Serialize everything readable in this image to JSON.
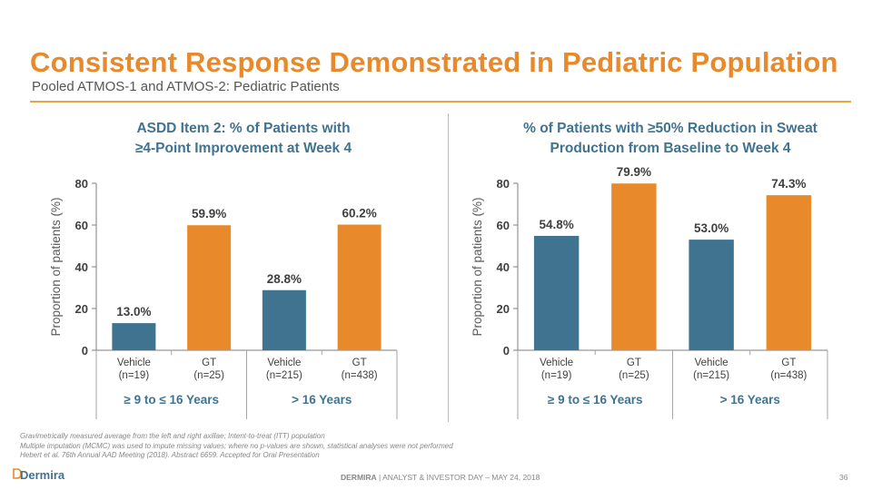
{
  "header": {
    "title": "Consistent Response Demonstrated in Pediatric Population",
    "subtitle": "Pooled ATMOS-1 and ATMOS-2: Pediatric Patients"
  },
  "colors": {
    "vehicle": "#3F738F",
    "gt": "#E8892B",
    "title": "#E8892B",
    "chart_title": "#3F7391"
  },
  "chart_data": [
    {
      "type": "bar",
      "title_lines": [
        "ASDD Item 2:  % of Patients with",
        "≥4-Point Improvement at Week 4"
      ],
      "ylabel": "Proportion of patients (%)",
      "ylim": [
        0,
        80
      ],
      "yticks": [
        "0",
        "20",
        "40",
        "60",
        "80"
      ],
      "categories": [
        {
          "name": "Vehicle",
          "n": "(n=19)",
          "group": 0,
          "kind": "vehicle",
          "value": 13.0,
          "label": "13.0%"
        },
        {
          "name": "GT",
          "n": "(n=25)",
          "group": 0,
          "kind": "gt",
          "value": 59.9,
          "label": "59.9%"
        },
        {
          "name": "Vehicle",
          "n": "(n=215)",
          "group": 1,
          "kind": "vehicle",
          "value": 28.8,
          "label": "28.8%"
        },
        {
          "name": "GT",
          "n": "(n=438)",
          "group": 1,
          "kind": "gt",
          "value": 60.2,
          "label": "60.2%"
        }
      ],
      "groups": [
        "≥ 9 to ≤ 16 Years",
        "> 16 Years"
      ],
      "grid": false
    },
    {
      "type": "bar",
      "title_lines": [
        "% of Patients with ≥50% Reduction in Sweat",
        "Production from Baseline to Week 4"
      ],
      "ylabel": "Proportion of patients (%)",
      "ylim": [
        0,
        80
      ],
      "yticks": [
        "0",
        "20",
        "40",
        "60",
        "80"
      ],
      "categories": [
        {
          "name": "Vehicle",
          "n": "(n=19)",
          "group": 0,
          "kind": "vehicle",
          "value": 54.8,
          "label": "54.8%"
        },
        {
          "name": "GT",
          "n": "(n=25)",
          "group": 0,
          "kind": "gt",
          "value": 79.9,
          "label": "79.9%"
        },
        {
          "name": "Vehicle",
          "n": "(n=215)",
          "group": 1,
          "kind": "vehicle",
          "value": 53.0,
          "label": "53.0%"
        },
        {
          "name": "GT",
          "n": "(n=438)",
          "group": 1,
          "kind": "gt",
          "value": 74.3,
          "label": "74.3%"
        }
      ],
      "groups": [
        "≥ 9 to ≤ 16 Years",
        "> 16 Years"
      ],
      "grid": false
    }
  ],
  "footnotes": [
    "Gravimetrically measured average from the left and right axillae; Intent-to-treat (ITT) population",
    "Multiple imputation (MCMC) was used to impute missing values; where no p-values are shown, statistical analyses were not performed",
    "Hebert et al. 76th Annual AAD Meeting (2018). Abstract 6659. Accepted for Oral Presentation"
  ],
  "footer": {
    "logo": "Dermira",
    "company": "DERMIRA",
    "event": " | ANALYST & INVESTOR DAY – MAY 24, 2018",
    "page": "36"
  }
}
